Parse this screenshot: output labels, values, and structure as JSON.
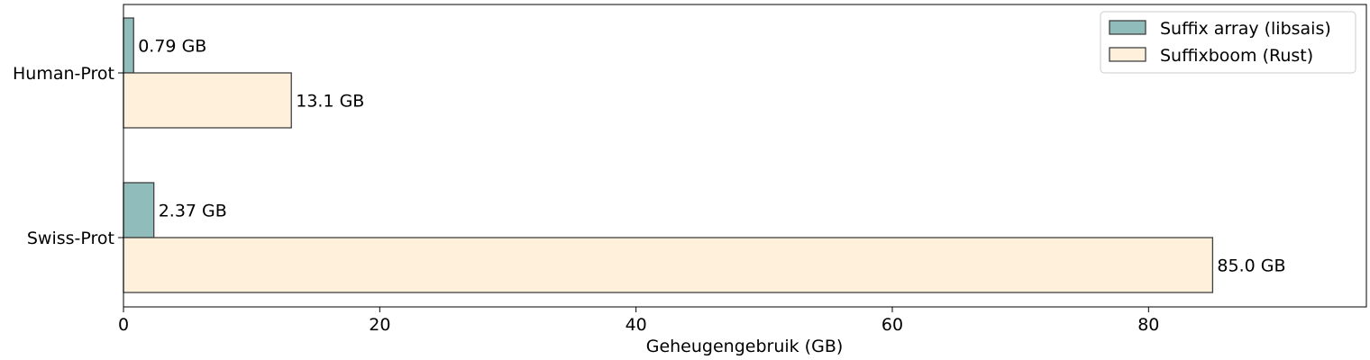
{
  "chart_data": {
    "type": "bar",
    "orientation": "horizontal",
    "categories": [
      "Human-Prot",
      "Swiss-Prot"
    ],
    "series": [
      {
        "name": "Suffix array (libsais)",
        "values": [
          0.79,
          2.37
        ],
        "value_labels": [
          "0.79 GB",
          "2.37 GB"
        ],
        "color": "#91bcbc"
      },
      {
        "name": "Suffixboom (Rust)",
        "values": [
          13.1,
          85.0
        ],
        "value_labels": [
          "13.1 GB",
          "85.0 GB"
        ],
        "color": "#fff0dc"
      }
    ],
    "xlabel": "Geheugengebruik (GB)",
    "ylabel": "",
    "title": "",
    "xlim": [
      0,
      97
    ],
    "xticks": [
      0,
      20,
      40,
      60,
      80
    ],
    "xtick_labels": [
      "0",
      "20",
      "40",
      "60",
      "80"
    ],
    "grid": false,
    "legend_position": "top-right",
    "edge_color": "#404040"
  }
}
